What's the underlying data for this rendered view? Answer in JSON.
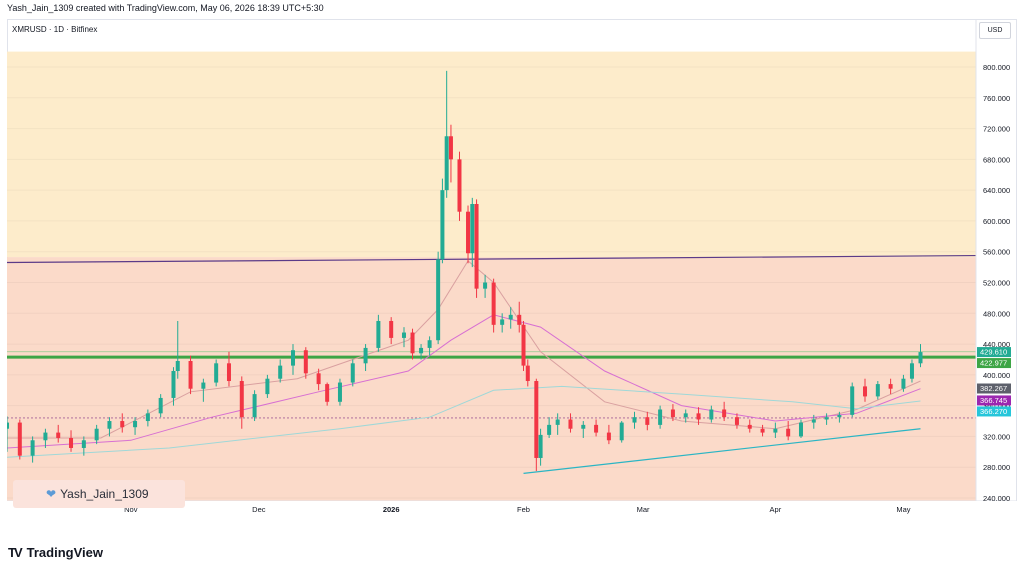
{
  "header": {
    "created_text": "Yash_Jain_1309 created with TradingView.com, May 06, 2026 18:39 UTC+5:30"
  },
  "symbol": {
    "text": "XMRUSD · 1D · Bitfinex"
  },
  "currency": {
    "label": "USD"
  },
  "watermark": {
    "text": "Yash_Jain_1309"
  },
  "footer": {
    "logo_text": "TradingView"
  },
  "colors": {
    "up": "#22ab94",
    "down": "#f23645",
    "zone_upper": "#fdeccb",
    "zone_lower": "#fbdac9",
    "support": "#3da546",
    "trend": "#2ab5c4",
    "resistance": "#5b3b88",
    "ma_fast": "#d9a0a0",
    "ma_mid": "#d76fd2",
    "ma_slow": "#9fd8d8",
    "dotted": "#a35f97"
  },
  "chart_data": {
    "type": "candlestick",
    "symbol": "XMRUSD",
    "timeframe": "1D",
    "exchange": "Bitfinex",
    "ylim": [
      220,
      820
    ],
    "xlim": [
      "2025-10-03",
      "2026-05-18"
    ],
    "y_ticks": [
      "240.000",
      "280.000",
      "320.000",
      "360.000",
      "400.000",
      "440.000",
      "480.000",
      "520.000",
      "560.000",
      "600.000",
      "640.000",
      "680.000",
      "720.000",
      "760.000",
      "800.000"
    ],
    "x_ticks": [
      {
        "label": "Nov",
        "date": "2025-11-01"
      },
      {
        "label": "Dec",
        "date": "2025-12-01"
      },
      {
        "label": "2026",
        "date": "2026-01-01"
      },
      {
        "label": "Feb",
        "date": "2026-02-01"
      },
      {
        "label": "Mar",
        "date": "2026-03-01"
      },
      {
        "label": "Apr",
        "date": "2026-04-01"
      },
      {
        "label": "May",
        "date": "2026-05-01"
      }
    ],
    "price_labels": [
      {
        "value": "429.610",
        "price": 429.61,
        "color": "#22ab94"
      },
      {
        "value": "422.977",
        "price": 422.977,
        "color": "#3da546"
      },
      {
        "value": "382.267",
        "price": 382.267,
        "color": "#5d606b"
      },
      {
        "value": "366.745",
        "price": 366.745,
        "color": "#9c27b0"
      },
      {
        "value": "366.270",
        "price": 366.27,
        "color": "#26c6da"
      }
    ],
    "zones": [
      {
        "from": 553,
        "to": 820,
        "color": "#fdeccb"
      },
      {
        "from": 220,
        "to": 553,
        "color": "#fbdac9"
      }
    ],
    "horizontal_lines": [
      {
        "price": 423,
        "color": "#3da546",
        "width": 3
      },
      {
        "price": 430,
        "color": "#8fc98f",
        "width": 0.8
      },
      {
        "price": 344,
        "color": "#a35f97",
        "width": 0.8,
        "dash": true
      }
    ],
    "trendlines": [
      {
        "x1": "2025-10-03",
        "y1": 546,
        "x2": "2026-05-18",
        "y2": 555,
        "color": "#5b3b88"
      },
      {
        "x1": "2026-02-01",
        "y1": 272,
        "x2": "2026-05-05",
        "y2": 330,
        "color": "#2ab5c4"
      }
    ],
    "candles": [
      {
        "d": "2025-10-03",
        "o": 330,
        "h": 346,
        "l": 300,
        "c": 338
      },
      {
        "d": "2025-10-06",
        "o": 338,
        "h": 342,
        "l": 290,
        "c": 295
      },
      {
        "d": "2025-10-09",
        "o": 295,
        "h": 320,
        "l": 286,
        "c": 315
      },
      {
        "d": "2025-10-12",
        "o": 315,
        "h": 330,
        "l": 305,
        "c": 325
      },
      {
        "d": "2025-10-15",
        "o": 325,
        "h": 335,
        "l": 312,
        "c": 318
      },
      {
        "d": "2025-10-18",
        "o": 318,
        "h": 328,
        "l": 300,
        "c": 305
      },
      {
        "d": "2025-10-21",
        "o": 305,
        "h": 320,
        "l": 295,
        "c": 315
      },
      {
        "d": "2025-10-24",
        "o": 315,
        "h": 335,
        "l": 310,
        "c": 330
      },
      {
        "d": "2025-10-27",
        "o": 330,
        "h": 345,
        "l": 320,
        "c": 340
      },
      {
        "d": "2025-10-30",
        "o": 340,
        "h": 350,
        "l": 325,
        "c": 332
      },
      {
        "d": "2025-11-02",
        "o": 332,
        "h": 345,
        "l": 322,
        "c": 340
      },
      {
        "d": "2025-11-05",
        "o": 340,
        "h": 355,
        "l": 333,
        "c": 350
      },
      {
        "d": "2025-11-08",
        "o": 350,
        "h": 375,
        "l": 345,
        "c": 370
      },
      {
        "d": "2025-11-11",
        "o": 370,
        "h": 410,
        "l": 360,
        "c": 405
      },
      {
        "d": "2025-11-12",
        "o": 405,
        "h": 470,
        "l": 395,
        "c": 418
      },
      {
        "d": "2025-11-15",
        "o": 418,
        "h": 425,
        "l": 375,
        "c": 382
      },
      {
        "d": "2025-11-18",
        "o": 382,
        "h": 395,
        "l": 365,
        "c": 390
      },
      {
        "d": "2025-11-21",
        "o": 390,
        "h": 420,
        "l": 385,
        "c": 415
      },
      {
        "d": "2025-11-24",
        "o": 415,
        "h": 430,
        "l": 385,
        "c": 392
      },
      {
        "d": "2025-11-27",
        "o": 392,
        "h": 398,
        "l": 330,
        "c": 345
      },
      {
        "d": "2025-11-30",
        "o": 345,
        "h": 380,
        "l": 340,
        "c": 375
      },
      {
        "d": "2025-12-03",
        "o": 375,
        "h": 400,
        "l": 370,
        "c": 395
      },
      {
        "d": "2025-12-06",
        "o": 395,
        "h": 420,
        "l": 390,
        "c": 412
      },
      {
        "d": "2025-12-09",
        "o": 412,
        "h": 440,
        "l": 400,
        "c": 432
      },
      {
        "d": "2025-12-12",
        "o": 432,
        "h": 436,
        "l": 395,
        "c": 402
      },
      {
        "d": "2025-12-15",
        "o": 402,
        "h": 408,
        "l": 380,
        "c": 388
      },
      {
        "d": "2025-12-17",
        "o": 388,
        "h": 390,
        "l": 360,
        "c": 365
      },
      {
        "d": "2025-12-20",
        "o": 365,
        "h": 395,
        "l": 360,
        "c": 390
      },
      {
        "d": "2025-12-23",
        "o": 390,
        "h": 420,
        "l": 385,
        "c": 415
      },
      {
        "d": "2025-12-26",
        "o": 415,
        "h": 440,
        "l": 405,
        "c": 435
      },
      {
        "d": "2025-12-29",
        "o": 435,
        "h": 478,
        "l": 430,
        "c": 470
      },
      {
        "d": "2026-01-01",
        "o": 470,
        "h": 475,
        "l": 440,
        "c": 448
      },
      {
        "d": "2026-01-04",
        "o": 448,
        "h": 462,
        "l": 436,
        "c": 455
      },
      {
        "d": "2026-01-06",
        "o": 455,
        "h": 460,
        "l": 420,
        "c": 428
      },
      {
        "d": "2026-01-08",
        "o": 428,
        "h": 440,
        "l": 420,
        "c": 435
      },
      {
        "d": "2026-01-10",
        "o": 435,
        "h": 450,
        "l": 425,
        "c": 445
      },
      {
        "d": "2026-01-12",
        "o": 445,
        "h": 560,
        "l": 440,
        "c": 550
      },
      {
        "d": "2026-01-13",
        "o": 550,
        "h": 655,
        "l": 545,
        "c": 640
      },
      {
        "d": "2026-01-14",
        "o": 640,
        "h": 795,
        "l": 630,
        "c": 710
      },
      {
        "d": "2026-01-15",
        "o": 710,
        "h": 725,
        "l": 650,
        "c": 680
      },
      {
        "d": "2026-01-17",
        "o": 680,
        "h": 690,
        "l": 600,
        "c": 612
      },
      {
        "d": "2026-01-19",
        "o": 612,
        "h": 620,
        "l": 545,
        "c": 558
      },
      {
        "d": "2026-01-20",
        "o": 558,
        "h": 630,
        "l": 540,
        "c": 622
      },
      {
        "d": "2026-01-21",
        "o": 622,
        "h": 628,
        "l": 500,
        "c": 512
      },
      {
        "d": "2026-01-23",
        "o": 512,
        "h": 530,
        "l": 500,
        "c": 520
      },
      {
        "d": "2026-01-25",
        "o": 520,
        "h": 525,
        "l": 455,
        "c": 465
      },
      {
        "d": "2026-01-27",
        "o": 465,
        "h": 480,
        "l": 455,
        "c": 472
      },
      {
        "d": "2026-01-29",
        "o": 472,
        "h": 488,
        "l": 460,
        "c": 478
      },
      {
        "d": "2026-01-31",
        "o": 478,
        "h": 495,
        "l": 455,
        "c": 465
      },
      {
        "d": "2026-02-01",
        "o": 465,
        "h": 470,
        "l": 405,
        "c": 412
      },
      {
        "d": "2026-02-02",
        "o": 412,
        "h": 420,
        "l": 385,
        "c": 392
      },
      {
        "d": "2026-02-04",
        "o": 392,
        "h": 395,
        "l": 275,
        "c": 292
      },
      {
        "d": "2026-02-05",
        "o": 292,
        "h": 330,
        "l": 282,
        "c": 322
      },
      {
        "d": "2026-02-07",
        "o": 322,
        "h": 345,
        "l": 318,
        "c": 335
      },
      {
        "d": "2026-02-09",
        "o": 335,
        "h": 350,
        "l": 322,
        "c": 342
      },
      {
        "d": "2026-02-12",
        "o": 342,
        "h": 350,
        "l": 325,
        "c": 330
      },
      {
        "d": "2026-02-15",
        "o": 330,
        "h": 340,
        "l": 318,
        "c": 335
      },
      {
        "d": "2026-02-18",
        "o": 335,
        "h": 342,
        "l": 320,
        "c": 325
      },
      {
        "d": "2026-02-21",
        "o": 325,
        "h": 335,
        "l": 310,
        "c": 315
      },
      {
        "d": "2026-02-24",
        "o": 315,
        "h": 340,
        "l": 312,
        "c": 338
      },
      {
        "d": "2026-02-27",
        "o": 338,
        "h": 352,
        "l": 330,
        "c": 345
      },
      {
        "d": "2026-03-02",
        "o": 345,
        "h": 352,
        "l": 328,
        "c": 335
      },
      {
        "d": "2026-03-05",
        "o": 335,
        "h": 360,
        "l": 330,
        "c": 355
      },
      {
        "d": "2026-03-08",
        "o": 355,
        "h": 362,
        "l": 340,
        "c": 345
      },
      {
        "d": "2026-03-11",
        "o": 345,
        "h": 355,
        "l": 338,
        "c": 350
      },
      {
        "d": "2026-03-14",
        "o": 350,
        "h": 358,
        "l": 335,
        "c": 342
      },
      {
        "d": "2026-03-17",
        "o": 342,
        "h": 360,
        "l": 338,
        "c": 355
      },
      {
        "d": "2026-03-20",
        "o": 355,
        "h": 365,
        "l": 340,
        "c": 345
      },
      {
        "d": "2026-03-23",
        "o": 345,
        "h": 350,
        "l": 330,
        "c": 335
      },
      {
        "d": "2026-03-26",
        "o": 335,
        "h": 342,
        "l": 325,
        "c": 330
      },
      {
        "d": "2026-03-29",
        "o": 330,
        "h": 335,
        "l": 320,
        "c": 325
      },
      {
        "d": "2026-04-01",
        "o": 325,
        "h": 338,
        "l": 318,
        "c": 330
      },
      {
        "d": "2026-04-04",
        "o": 330,
        "h": 340,
        "l": 315,
        "c": 320
      },
      {
        "d": "2026-04-07",
        "o": 320,
        "h": 342,
        "l": 318,
        "c": 338
      },
      {
        "d": "2026-04-10",
        "o": 338,
        "h": 348,
        "l": 330,
        "c": 342
      },
      {
        "d": "2026-04-13",
        "o": 342,
        "h": 350,
        "l": 335,
        "c": 345
      },
      {
        "d": "2026-04-16",
        "o": 345,
        "h": 352,
        "l": 338,
        "c": 348
      },
      {
        "d": "2026-04-19",
        "o": 348,
        "h": 390,
        "l": 345,
        "c": 385
      },
      {
        "d": "2026-04-22",
        "o": 385,
        "h": 395,
        "l": 365,
        "c": 372
      },
      {
        "d": "2026-04-25",
        "o": 372,
        "h": 392,
        "l": 368,
        "c": 388
      },
      {
        "d": "2026-04-28",
        "o": 388,
        "h": 395,
        "l": 375,
        "c": 382
      },
      {
        "d": "2026-05-01",
        "o": 382,
        "h": 400,
        "l": 378,
        "c": 395
      },
      {
        "d": "2026-05-03",
        "o": 395,
        "h": 420,
        "l": 390,
        "c": 415
      },
      {
        "d": "2026-05-05",
        "o": 415,
        "h": 440,
        "l": 410,
        "c": 429.61
      }
    ],
    "moving_averages": [
      {
        "color": "#d9a0a0",
        "points": [
          [
            "2025-10-03",
            318
          ],
          [
            "2025-10-25",
            318
          ],
          [
            "2025-11-15",
            378
          ],
          [
            "2025-12-10",
            395
          ],
          [
            "2026-01-05",
            445
          ],
          [
            "2026-01-12",
            485
          ],
          [
            "2026-01-19",
            548
          ],
          [
            "2026-01-25",
            520
          ],
          [
            "2026-02-05",
            430
          ],
          [
            "2026-02-20",
            365
          ],
          [
            "2026-03-10",
            340
          ],
          [
            "2026-04-01",
            330
          ],
          [
            "2026-04-20",
            355
          ],
          [
            "2026-05-05",
            392
          ]
        ]
      },
      {
        "color": "#d76fd2",
        "points": [
          [
            "2025-10-03",
            305
          ],
          [
            "2025-11-01",
            315
          ],
          [
            "2025-11-20",
            345
          ],
          [
            "2025-12-15",
            378
          ],
          [
            "2026-01-05",
            405
          ],
          [
            "2026-01-15",
            445
          ],
          [
            "2026-01-25",
            478
          ],
          [
            "2026-02-05",
            462
          ],
          [
            "2026-02-20",
            405
          ],
          [
            "2026-03-10",
            360
          ],
          [
            "2026-04-01",
            340
          ],
          [
            "2026-04-20",
            350
          ],
          [
            "2026-05-05",
            382
          ]
        ]
      },
      {
        "color": "#9fd8d8",
        "points": [
          [
            "2025-10-03",
            293
          ],
          [
            "2025-11-10",
            305
          ],
          [
            "2025-12-20",
            330
          ],
          [
            "2026-01-10",
            345
          ],
          [
            "2026-01-25",
            380
          ],
          [
            "2026-02-10",
            385
          ],
          [
            "2026-03-10",
            375
          ],
          [
            "2026-04-05",
            365
          ],
          [
            "2026-04-20",
            356
          ],
          [
            "2026-05-05",
            366
          ]
        ]
      }
    ]
  }
}
